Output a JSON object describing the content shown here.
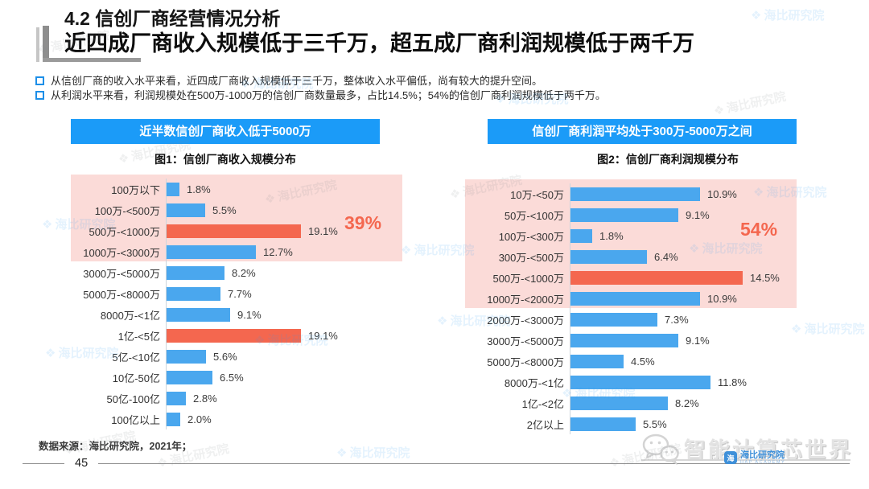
{
  "header": {
    "section_title": "4.2 信创厂商经营情况分析",
    "headline": "近四成厂商收入规模低于三千万，超五成厂商利润规模低于两千万",
    "bullets": [
      "从信创厂商的收入水平来看，近四成厂商收入规模低于三千万，整体收入水平偏低，尚有较大的提升空间。",
      "从利润水平来看，利润规模处在500万-1000万的信创厂商数量最多，占比14.5%；54%的信创厂商利润规模低于两千万。"
    ]
  },
  "chart_data": [
    {
      "type": "bar",
      "orientation": "horizontal",
      "banner": "近半数信创厂商收入低于5000万",
      "title": "图1：信创厂商收入规模分布",
      "categories": [
        "100万以下",
        "100万-<500万",
        "500万-<1000万",
        "1000万-<3000万",
        "3000万-<5000万",
        "5000万-<8000万",
        "8000万-<1亿",
        "1亿-<5亿",
        "5亿-<10亿",
        "10亿-50亿",
        "50亿-100亿",
        "100亿以上"
      ],
      "values": [
        1.8,
        5.5,
        19.1,
        12.7,
        8.2,
        7.7,
        9.1,
        19.1,
        5.6,
        6.5,
        2.8,
        2.0
      ],
      "unit": "%",
      "xlim": [
        0,
        22
      ],
      "grid": false,
      "legend": false,
      "red_rows": [
        2,
        7
      ],
      "band_covers_rows": [
        0,
        3
      ],
      "annotation": "39%"
    },
    {
      "type": "bar",
      "orientation": "horizontal",
      "banner": "信创厂商利润平均处于300万-5000万之间",
      "title": "图2：信创厂商利润规模分布",
      "categories": [
        "10万-<50万",
        "50万-<100万",
        "100万-<300万",
        "300万-<500万",
        "500万-<1000万",
        "1000万-<2000万",
        "2000万-<3000万",
        "3000万-<5000万",
        "5000万-<8000万",
        "8000万-<1亿",
        "1亿-<2亿",
        "2亿以上"
      ],
      "values": [
        10.9,
        9.1,
        1.8,
        6.4,
        14.5,
        10.9,
        7.3,
        9.1,
        4.5,
        11.8,
        8.2,
        5.5
      ],
      "unit": "%",
      "xlim": [
        0,
        15.5
      ],
      "grid": false,
      "legend": false,
      "red_rows": [
        4
      ],
      "band_covers_rows": [
        0,
        5
      ],
      "annotation": "54%"
    }
  ],
  "colors": {
    "banner_blue": "#1B9BF8",
    "bar_blue": "#4AA7EE",
    "bar_red": "#F4674F",
    "band_pink": "#FBDBD8",
    "annotation_red": "#F4674F"
  },
  "footer": {
    "source": "数据来源：海比研究院，2021年；",
    "page_number": "45"
  },
  "branding": {
    "bottom_logo_text": "智能计算芯世界",
    "watermark_text": "海比研究院",
    "watermark_subtext": "HAP ACADEMY"
  }
}
